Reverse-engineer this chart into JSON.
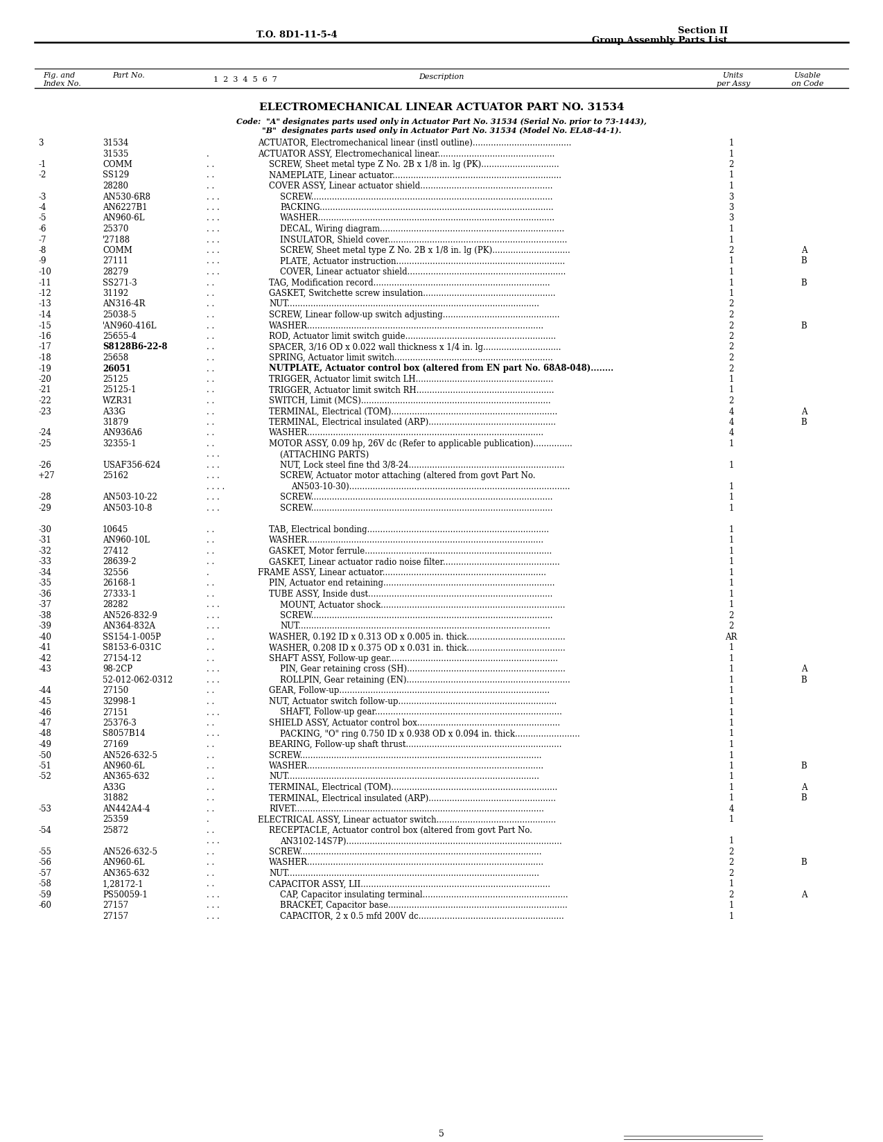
{
  "header_left": "T.O. 8D1-11-5-4",
  "header_right_line1": "Section II",
  "header_right_line2": "Group Assembly Parts List",
  "col_headers": {
    "fig_index": "Fig. and\nIndex No.",
    "part_no": "Part No.",
    "indent_cols": "1  2  3  4  5  6  7",
    "description": "Description",
    "units": "Units\nper Assy",
    "usable": "Usable\non Code"
  },
  "main_title": "ELECTROMECHANICAL LINEAR ACTUATOR PART NO. 31534",
  "code_note_line1": "Code:  \"A\" designates parts used only in Actuator Part No. 31534 (Serial No. prior to 73-1443),",
  "code_note_line2": "\"B\"  designates parts used only in Actuator Part No. 31534 (Model No. ELA8-44-1).",
  "rows": [
    {
      "fig": "3",
      "part": "31534",
      "indent": 0,
      "desc": "ACTUATOR, Electromechanical linear (instl outline)......................................",
      "units": "1",
      "code": ""
    },
    {
      "fig": "",
      "part": "31535",
      "indent": 1,
      "desc": "ACTUATOR ASSY, Electromechanical linear.............................................",
      "units": "1",
      "code": ""
    },
    {
      "fig": "-1",
      "part": "COMM",
      "indent": 2,
      "desc": "SCREW, Sheet metal type Z No. 2B x 1/8 in. lg (PK)..............................",
      "units": "2",
      "code": ""
    },
    {
      "fig": "-2",
      "part": "SS129",
      "indent": 2,
      "desc": "NAMEPLATE, Linear actuator.................................................................",
      "units": "1",
      "code": ""
    },
    {
      "fig": "",
      "part": "28280",
      "indent": 2,
      "desc": "COVER ASSY, Linear actuator shield...................................................",
      "units": "1",
      "code": ""
    },
    {
      "fig": "-3",
      "part": "AN530-6R8",
      "indent": 3,
      "desc": "SCREW.............................................................................................",
      "units": "3",
      "code": ""
    },
    {
      "fig": "-4",
      "part": "AN6227B1",
      "indent": 3,
      "desc": "PACKING..........................................................................................",
      "units": "3",
      "code": ""
    },
    {
      "fig": "-5",
      "part": "AN960-6L",
      "indent": 3,
      "desc": "WASHER...........................................................................................",
      "units": "3",
      "code": ""
    },
    {
      "fig": "-6",
      "part": "25370",
      "indent": 3,
      "desc": "DECAL, Wiring diagram.......................................................................",
      "units": "1",
      "code": ""
    },
    {
      "fig": "-7",
      "part": "'27188",
      "indent": 3,
      "desc": "INSULATOR, Shield cover.....................................................................",
      "units": "1",
      "code": ""
    },
    {
      "fig": "-8",
      "part": "COMM",
      "indent": 3,
      "desc": "SCREW, Sheet metal type Z No. 2B x 1/8 in. lg (PK)..............................",
      "units": "2",
      "code": "A"
    },
    {
      "fig": "-9",
      "part": "27111",
      "indent": 3,
      "desc": "PLATE, Actuator instruction.................................................................",
      "units": "1",
      "code": "B"
    },
    {
      "fig": "-10",
      "part": "28279",
      "indent": 3,
      "desc": "COVER, Linear actuator shield.............................................................",
      "units": "1",
      "code": ""
    },
    {
      "fig": "-11",
      "part": "SS271-3",
      "indent": 2,
      "desc": "TAG, Modification record....................................................................",
      "units": "1",
      "code": "B"
    },
    {
      "fig": "-12",
      "part": "31192",
      "indent": 2,
      "desc": "GASKET, Switchette screw insulation...................................................",
      "units": "1",
      "code": ""
    },
    {
      "fig": "-13",
      "part": "AN316-4R",
      "indent": 2,
      "desc": "NUT.................................................................................................",
      "units": "2",
      "code": ""
    },
    {
      "fig": "-14",
      "part": "25038-5",
      "indent": 2,
      "desc": "SCREW, Linear follow-up switch adjusting.............................................",
      "units": "2",
      "code": ""
    },
    {
      "fig": "-15",
      "part": "'AN960-416L",
      "indent": 2,
      "desc": "WASHER...........................................................................................",
      "units": "2",
      "code": "B"
    },
    {
      "fig": "-16",
      "part": "25655-4",
      "indent": 2,
      "desc": "ROD, Actuator limit switch guide..........................................................",
      "units": "2",
      "code": ""
    },
    {
      "fig": "-17",
      "part": "S8128B6-22-8",
      "indent": 2,
      "desc": "SPACER, 3/16 OD x 0.022 wall thickness x 1/4 in. lg..............................",
      "units": "2",
      "code": ""
    },
    {
      "fig": "-18",
      "part": "25658",
      "indent": 2,
      "desc": "SPRING, Actuator limit switch.............................................................",
      "units": "2",
      "code": ""
    },
    {
      "fig": "-19",
      "part": "26051",
      "indent": 2,
      "desc": "NUTPLATE, Actuator control box (altered from EN part No. 68A8-048)........",
      "units": "2",
      "code": ""
    },
    {
      "fig": "-20",
      "part": "25125",
      "indent": 2,
      "desc": "TRIGGER, Actuator limit switch LH.....................................................",
      "units": "1",
      "code": ""
    },
    {
      "fig": "-21",
      "part": "25125-1",
      "indent": 2,
      "desc": "TRIGGER, Actuator limit switch RH.....................................................",
      "units": "1",
      "code": ""
    },
    {
      "fig": "-22",
      "part": "WZR31",
      "indent": 2,
      "desc": "SWITCH, Limit (MCS).........................................................................",
      "units": "2",
      "code": ""
    },
    {
      "fig": "-23",
      "part": "A33G",
      "indent": 2,
      "desc": "TERMINAL, Electrical (TOM)................................................................",
      "units": "4",
      "code": "A"
    },
    {
      "fig": "",
      "part": "31879",
      "indent": 2,
      "desc": "TERMINAL, Electrical insulated (ARP).................................................",
      "units": "4",
      "code": "B"
    },
    {
      "fig": "-24",
      "part": "AN936A6",
      "indent": 2,
      "desc": "WASHER...........................................................................................",
      "units": "4",
      "code": ""
    },
    {
      "fig": "-25",
      "part": "32355-1",
      "indent": 2,
      "desc": "MOTOR ASSY, 0.09 hp, 26V dc (Refer to applicable publication)...............",
      "units": "1",
      "code": ""
    },
    {
      "fig": "",
      "part": "",
      "indent": 3,
      "desc": "(ATTACHING PARTS)",
      "units": "",
      "code": ""
    },
    {
      "fig": "-26",
      "part": "USAF356-624",
      "indent": 3,
      "desc": "NUT, Lock steel fine thd 3/8-24............................................................",
      "units": "1",
      "code": ""
    },
    {
      "fig": "+27",
      "part": "25162",
      "indent": 3,
      "desc": "SCREW, Actuator motor attaching (altered from govt Part No.",
      "units": "",
      "code": ""
    },
    {
      "fig": "",
      "part": "",
      "indent": 4,
      "desc": "AN503-10-30).....................................................................................",
      "units": "1",
      "code": ""
    },
    {
      "fig": "-28",
      "part": "AN503-10-22",
      "indent": 3,
      "desc": "SCREW.............................................................................................",
      "units": "1",
      "code": ""
    },
    {
      "fig": "-29",
      "part": "AN503-10-8",
      "indent": 3,
      "desc": "SCREW.............................................................................................",
      "units": "1",
      "code": ""
    },
    {
      "fig": "",
      "part": "",
      "indent": 0,
      "desc": "",
      "units": "",
      "code": ""
    },
    {
      "fig": "-30",
      "part": "10645",
      "indent": 2,
      "desc": "TAB, Electrical bonding......................................................................",
      "units": "1",
      "code": ""
    },
    {
      "fig": "-31",
      "part": "AN960-10L",
      "indent": 2,
      "desc": "WASHER...........................................................................................",
      "units": "1",
      "code": ""
    },
    {
      "fig": "-32",
      "part": "27412",
      "indent": 2,
      "desc": "GASKET, Motor ferrule........................................................................",
      "units": "1",
      "code": ""
    },
    {
      "fig": "-33",
      "part": "28639-2",
      "indent": 2,
      "desc": "GASKET, Linear actuator radio noise filter.............................................",
      "units": "1",
      "code": ""
    },
    {
      "fig": "-34",
      "part": "32556",
      "indent": 1,
      "desc": "FRAME ASSY, Linear actuator...............................................................",
      "units": "1",
      "code": ""
    },
    {
      "fig": "-35",
      "part": "26168-1",
      "indent": 2,
      "desc": "PIN, Actuator end retaining..................................................................",
      "units": "1",
      "code": ""
    },
    {
      "fig": "-36",
      "part": "27333-1",
      "indent": 2,
      "desc": "TUBE ASSY, Inside dust.......................................................................",
      "units": "1",
      "code": ""
    },
    {
      "fig": "-37",
      "part": "28282",
      "indent": 3,
      "desc": "MOUNT, Actuator shock.......................................................................",
      "units": "1",
      "code": ""
    },
    {
      "fig": "-38",
      "part": "AN526-832-9",
      "indent": 3,
      "desc": "SCREW.............................................................................................",
      "units": "2",
      "code": ""
    },
    {
      "fig": "-39",
      "part": "AN364-832A",
      "indent": 3,
      "desc": "NUT.................................................................................................",
      "units": "2",
      "code": ""
    },
    {
      "fig": "-40",
      "part": "SS154-1-005P",
      "indent": 2,
      "desc": "WASHER, 0.192 ID x 0.313 OD x 0.005 in. thick......................................",
      "units": "AR",
      "code": ""
    },
    {
      "fig": "-41",
      "part": "S8153-6-031C",
      "indent": 2,
      "desc": "WASHER, 0.208 ID x 0.375 OD x 0.031 in. thick......................................",
      "units": "1",
      "code": ""
    },
    {
      "fig": "-42",
      "part": "27154-12",
      "indent": 2,
      "desc": "SHAFT ASSY, Follow-up gear.................................................................",
      "units": "1",
      "code": ""
    },
    {
      "fig": "-43",
      "part": "98-2CP",
      "indent": 3,
      "desc": "PIN, Gear retaining cross (SH).............................................................",
      "units": "1",
      "code": "A"
    },
    {
      "fig": "",
      "part": "52-012-062-0312",
      "indent": 3,
      "desc": "ROLLPIN, Gear retaining (EN)...............................................................",
      "units": "1",
      "code": "B"
    },
    {
      "fig": "-44",
      "part": "27150",
      "indent": 2,
      "desc": "GEAR, Follow-up.................................................................................",
      "units": "1",
      "code": ""
    },
    {
      "fig": "-45",
      "part": "32998-1",
      "indent": 2,
      "desc": "NUT, Actuator switch follow-up.............................................................",
      "units": "1",
      "code": ""
    },
    {
      "fig": "-46",
      "part": "27151",
      "indent": 3,
      "desc": "SHAFT, Follow-up gear........................................................................",
      "units": "1",
      "code": ""
    },
    {
      "fig": "-47",
      "part": "25376-3",
      "indent": 2,
      "desc": "SHIELD ASSY, Actuator control box.......................................................",
      "units": "1",
      "code": ""
    },
    {
      "fig": "-48",
      "part": "S8057B14",
      "indent": 3,
      "desc": "PACKING, \"O\" ring 0.750 ID x 0.938 OD x 0.094 in. thick.........................",
      "units": "1",
      "code": ""
    },
    {
      "fig": "-49",
      "part": "27169",
      "indent": 2,
      "desc": "BEARING, Follow-up shaft thrust............................................................",
      "units": "1",
      "code": ""
    },
    {
      "fig": "-50",
      "part": "AN526-632-5",
      "indent": 2,
      "desc": "SCREW.............................................................................................",
      "units": "1",
      "code": ""
    },
    {
      "fig": "-51",
      "part": "AN960-6L",
      "indent": 2,
      "desc": "WASHER...........................................................................................",
      "units": "1",
      "code": "B"
    },
    {
      "fig": "-52",
      "part": "AN365-632",
      "indent": 2,
      "desc": "NUT.................................................................................................",
      "units": "1",
      "code": ""
    },
    {
      "fig": "",
      "part": "A33G",
      "indent": 2,
      "desc": "TERMINAL, Electrical (TOM)................................................................",
      "units": "1",
      "code": "A"
    },
    {
      "fig": "",
      "part": "31882",
      "indent": 2,
      "desc": "TERMINAL, Electrical insulated (ARP).................................................",
      "units": "1",
      "code": "B"
    },
    {
      "fig": "-53",
      "part": "AN442A4-4",
      "indent": 2,
      "desc": "RIVET................................................................................................",
      "units": "4",
      "code": ""
    },
    {
      "fig": "",
      "part": "25359",
      "indent": 1,
      "desc": "ELECTRICAL ASSY, Linear actuator switch..............................................",
      "units": "1",
      "code": ""
    },
    {
      "fig": "-54",
      "part": "25872",
      "indent": 2,
      "desc": "RECEPTACLE, Actuator control box (altered from govt Part No.",
      "units": "",
      "code": ""
    },
    {
      "fig": "",
      "part": "",
      "indent": 3,
      "desc": "AN3102-14S7P)...................................................................................",
      "units": "1",
      "code": ""
    },
    {
      "fig": "-55",
      "part": "AN526-632-5",
      "indent": 2,
      "desc": "SCREW.............................................................................................",
      "units": "2",
      "code": ""
    },
    {
      "fig": "-56",
      "part": "AN960-6L",
      "indent": 2,
      "desc": "WASHER...........................................................................................",
      "units": "2",
      "code": "B"
    },
    {
      "fig": "-57",
      "part": "AN365-632",
      "indent": 2,
      "desc": "NUT.................................................................................................",
      "units": "2",
      "code": ""
    },
    {
      "fig": "-58",
      "part": "1,28172-1",
      "indent": 2,
      "desc": "CAPACITOR ASSY, LII.........................................................................",
      "units": "1",
      "code": ""
    },
    {
      "fig": "-59",
      "part": "PS50059-1",
      "indent": 3,
      "desc": "CAP, Capacitor insulating terminal........................................................",
      "units": "2",
      "code": "A"
    },
    {
      "fig": "-60",
      "part": "27157",
      "indent": 3,
      "desc": "BRACKET, Capacitor base.....................................................................",
      "units": "1",
      "code": ""
    },
    {
      "fig": "",
      "part": "27157",
      "indent": 3,
      "desc": "CAPACITOR, 2 x 0.5 mfd 200V dc........................................................",
      "units": "1",
      "code": ""
    }
  ],
  "page_number": "5",
  "bg_color": "#ffffff",
  "text_color": "#000000"
}
